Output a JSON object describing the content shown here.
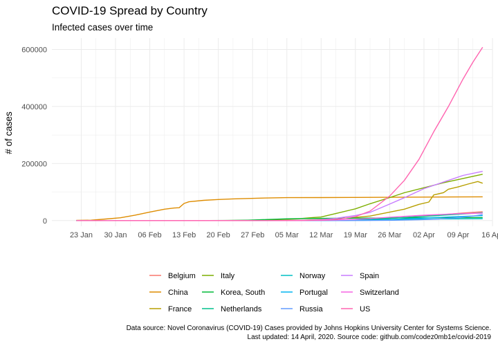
{
  "chart_data": {
    "type": "line",
    "title": "COVID-19 Spread by Country",
    "subtitle": "Infected cases over time",
    "xlabel": "",
    "ylabel": "# of cases",
    "x_range": [
      "2020-01-17",
      "2020-04-16"
    ],
    "ylim": [
      -20000,
      640000
    ],
    "x_ticks": [
      {
        "date": "2020-01-23",
        "label": "23 Jan"
      },
      {
        "date": "2020-01-30",
        "label": "30 Jan"
      },
      {
        "date": "2020-02-06",
        "label": "06 Feb"
      },
      {
        "date": "2020-02-13",
        "label": "13 Feb"
      },
      {
        "date": "2020-02-20",
        "label": "20 Feb"
      },
      {
        "date": "2020-02-27",
        "label": "27 Feb"
      },
      {
        "date": "2020-03-05",
        "label": "05 Mar"
      },
      {
        "date": "2020-03-12",
        "label": "12 Mar"
      },
      {
        "date": "2020-03-19",
        "label": "19 Mar"
      },
      {
        "date": "2020-03-26",
        "label": "26 Mar"
      },
      {
        "date": "2020-04-02",
        "label": "02 Apr"
      },
      {
        "date": "2020-04-09",
        "label": "09 Apr"
      },
      {
        "date": "2020-04-16",
        "label": "16 Apr"
      }
    ],
    "y_ticks": [
      0,
      200000,
      400000,
      600000
    ],
    "grid": true,
    "legend_position": "bottom",
    "series": [
      {
        "name": "Belgium",
        "color": "#F8766D",
        "points": [
          [
            "2020-01-22",
            0
          ],
          [
            "2020-03-01",
            2
          ],
          [
            "2020-03-08",
            200
          ],
          [
            "2020-03-15",
            886
          ],
          [
            "2020-03-22",
            3401
          ],
          [
            "2020-03-29",
            10836
          ],
          [
            "2020-04-05",
            19691
          ],
          [
            "2020-04-10",
            26667
          ],
          [
            "2020-04-14",
            31119
          ]
        ]
      },
      {
        "name": "China",
        "color": "#DE8C00",
        "points": [
          [
            "2020-01-22",
            548
          ],
          [
            "2020-01-25",
            1406
          ],
          [
            "2020-01-28",
            5509
          ],
          [
            "2020-01-31",
            9802
          ],
          [
            "2020-02-03",
            19000
          ],
          [
            "2020-02-06",
            30000
          ],
          [
            "2020-02-09",
            40000
          ],
          [
            "2020-02-11",
            44000
          ],
          [
            "2020-02-12",
            45000
          ],
          [
            "2020-02-13",
            60000
          ],
          [
            "2020-02-14",
            66000
          ],
          [
            "2020-02-17",
            71000
          ],
          [
            "2020-02-20",
            74000
          ],
          [
            "2020-02-23",
            76000
          ],
          [
            "2020-02-28",
            78500
          ],
          [
            "2020-03-05",
            80400
          ],
          [
            "2020-03-12",
            80800
          ],
          [
            "2020-03-19",
            81150
          ],
          [
            "2020-03-26",
            81600
          ],
          [
            "2020-04-02",
            82360
          ],
          [
            "2020-04-09",
            82900
          ],
          [
            "2020-04-14",
            83300
          ]
        ]
      },
      {
        "name": "France",
        "color": "#B79F00",
        "points": [
          [
            "2020-01-24",
            2
          ],
          [
            "2020-03-01",
            130
          ],
          [
            "2020-03-08",
            1200
          ],
          [
            "2020-03-15",
            5400
          ],
          [
            "2020-03-22",
            16000
          ],
          [
            "2020-03-29",
            40000
          ],
          [
            "2020-04-01",
            57000
          ],
          [
            "2020-04-03",
            65000
          ],
          [
            "2020-04-04",
            90000
          ],
          [
            "2020-04-06",
            98000
          ],
          [
            "2020-04-07",
            110000
          ],
          [
            "2020-04-09",
            118000
          ],
          [
            "2020-04-11",
            128000
          ],
          [
            "2020-04-13",
            137000
          ],
          [
            "2020-04-14",
            131000
          ]
        ]
      },
      {
        "name": "Italy",
        "color": "#7CAE00",
        "points": [
          [
            "2020-01-22",
            0
          ],
          [
            "2020-02-21",
            20
          ],
          [
            "2020-02-29",
            1128
          ],
          [
            "2020-03-07",
            5883
          ],
          [
            "2020-03-10",
            10149
          ],
          [
            "2020-03-12",
            12462
          ],
          [
            "2020-03-15",
            24747
          ],
          [
            "2020-03-19",
            41035
          ],
          [
            "2020-03-22",
            59138
          ],
          [
            "2020-03-26",
            80589
          ],
          [
            "2020-03-29",
            97689
          ],
          [
            "2020-04-02",
            115242
          ],
          [
            "2020-04-06",
            132547
          ],
          [
            "2020-04-10",
            147577
          ],
          [
            "2020-04-14",
            162488
          ]
        ]
      },
      {
        "name": "Korea, South",
        "color": "#00BA38",
        "points": [
          [
            "2020-01-22",
            1
          ],
          [
            "2020-02-18",
            31
          ],
          [
            "2020-02-22",
            433
          ],
          [
            "2020-02-26",
            1261
          ],
          [
            "2020-03-01",
            3736
          ],
          [
            "2020-03-05",
            6088
          ],
          [
            "2020-03-10",
            7513
          ],
          [
            "2020-03-19",
            8565
          ],
          [
            "2020-03-29",
            9583
          ],
          [
            "2020-04-08",
            10384
          ],
          [
            "2020-04-14",
            10564
          ]
        ]
      },
      {
        "name": "Netherlands",
        "color": "#00C08B",
        "points": [
          [
            "2020-01-22",
            0
          ],
          [
            "2020-03-01",
            10
          ],
          [
            "2020-03-08",
            265
          ],
          [
            "2020-03-15",
            1135
          ],
          [
            "2020-03-22",
            4216
          ],
          [
            "2020-03-29",
            10866
          ],
          [
            "2020-04-05",
            17851
          ],
          [
            "2020-04-14",
            27580
          ]
        ]
      },
      {
        "name": "Norway",
        "color": "#00BFC4",
        "points": [
          [
            "2020-01-22",
            0
          ],
          [
            "2020-03-01",
            19
          ],
          [
            "2020-03-08",
            176
          ],
          [
            "2020-03-15",
            1221
          ],
          [
            "2020-03-22",
            2383
          ],
          [
            "2020-03-29",
            4284
          ],
          [
            "2020-04-05",
            5687
          ],
          [
            "2020-04-14",
            6623
          ]
        ]
      },
      {
        "name": "Portugal",
        "color": "#00B4F0",
        "points": [
          [
            "2020-01-22",
            0
          ],
          [
            "2020-03-03",
            2
          ],
          [
            "2020-03-10",
            41
          ],
          [
            "2020-03-17",
            448
          ],
          [
            "2020-03-24",
            2362
          ],
          [
            "2020-03-31",
            7443
          ],
          [
            "2020-04-07",
            12442
          ],
          [
            "2020-04-14",
            17448
          ]
        ]
      },
      {
        "name": "Russia",
        "color": "#619CFF",
        "points": [
          [
            "2020-01-31",
            2
          ],
          [
            "2020-03-10",
            20
          ],
          [
            "2020-03-20",
            253
          ],
          [
            "2020-03-27",
            1036
          ],
          [
            "2020-04-01",
            2777
          ],
          [
            "2020-04-05",
            5389
          ],
          [
            "2020-04-09",
            10131
          ],
          [
            "2020-04-12",
            15770
          ],
          [
            "2020-04-14",
            21102
          ]
        ]
      },
      {
        "name": "Spain",
        "color": "#C77CFF",
        "points": [
          [
            "2020-02-01",
            1
          ],
          [
            "2020-03-01",
            84
          ],
          [
            "2020-03-08",
            673
          ],
          [
            "2020-03-12",
            3146
          ],
          [
            "2020-03-15",
            7798
          ],
          [
            "2020-03-19",
            17963
          ],
          [
            "2020-03-22",
            28768
          ],
          [
            "2020-03-26",
            57786
          ],
          [
            "2020-03-29",
            80110
          ],
          [
            "2020-04-02",
            112065
          ],
          [
            "2020-04-06",
            135032
          ],
          [
            "2020-04-10",
            158273
          ],
          [
            "2020-04-14",
            172541
          ]
        ]
      },
      {
        "name": "Switzerland",
        "color": "#F564E3",
        "points": [
          [
            "2020-01-22",
            0
          ],
          [
            "2020-02-25",
            1
          ],
          [
            "2020-03-05",
            90
          ],
          [
            "2020-03-12",
            858
          ],
          [
            "2020-03-19",
            4075
          ],
          [
            "2020-03-26",
            11811
          ],
          [
            "2020-04-02",
            18827
          ],
          [
            "2020-04-09",
            24051
          ],
          [
            "2020-04-14",
            25834
          ]
        ]
      },
      {
        "name": "US",
        "color": "#FF64B0",
        "points": [
          [
            "2020-01-22",
            1
          ],
          [
            "2020-03-01",
            75
          ],
          [
            "2020-03-08",
            537
          ],
          [
            "2020-03-12",
            1663
          ],
          [
            "2020-03-15",
            3499
          ],
          [
            "2020-03-19",
            13677
          ],
          [
            "2020-03-22",
            33276
          ],
          [
            "2020-03-26",
            85996
          ],
          [
            "2020-03-29",
            140886
          ],
          [
            "2020-04-01",
            215003
          ],
          [
            "2020-04-04",
            311357
          ],
          [
            "2020-04-07",
            399929
          ],
          [
            "2020-04-10",
            496535
          ],
          [
            "2020-04-12",
            555313
          ],
          [
            "2020-04-14",
            607670
          ]
        ]
      }
    ]
  },
  "caption": {
    "line1": "Data source: Novel Coronavirus (COVID-19) Cases provided by Johns Hopkins University Center for Systems Science.",
    "line2": "Last updated: 14 April, 2020. Source code: github.com/codez0mb1e/covid-2019"
  }
}
